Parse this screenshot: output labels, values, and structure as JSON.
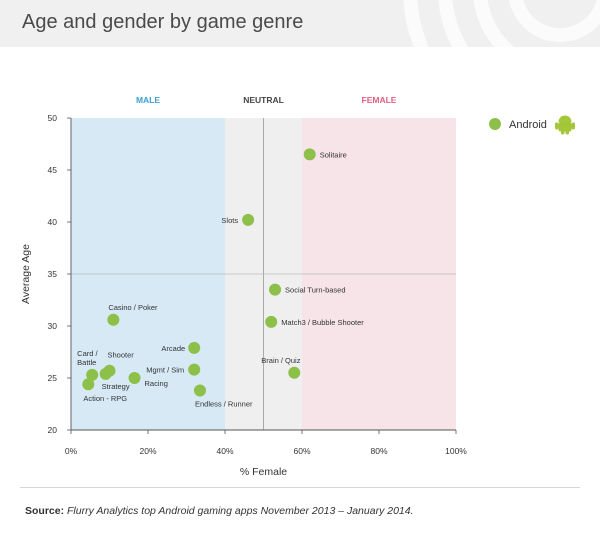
{
  "header": {
    "title": "Age and gender by game genre"
  },
  "colors": {
    "header_bg": "#f0f0f0",
    "male_zone": "#d6e9f5",
    "neutral_zone": "#efefef",
    "female_zone": "#f7e4e8",
    "male_label": "#3aa0d0",
    "neutral_label": "#444444",
    "female_label": "#e06080",
    "point": "#8cc049",
    "android": "#a4c639"
  },
  "zones": [
    {
      "label": "MALE",
      "from": 0,
      "to": 40,
      "color_key": "male"
    },
    {
      "label": "NEUTRAL",
      "from": 40,
      "to": 60,
      "color_key": "neutral"
    },
    {
      "label": "FEMALE",
      "from": 60,
      "to": 100,
      "color_key": "female"
    }
  ],
  "legend": {
    "label": "Android",
    "icon": "android-icon"
  },
  "chart_data": {
    "type": "scatter",
    "title": "Age and gender by game genre",
    "xlabel": "% Female",
    "ylabel": "Average Age",
    "xlim": [
      0,
      100
    ],
    "ylim": [
      20,
      50
    ],
    "xticks": [
      0,
      20,
      40,
      60,
      80,
      100
    ],
    "xtick_labels": [
      "0%",
      "20%",
      "40%",
      "60%",
      "80%",
      "100%"
    ],
    "yticks": [
      20,
      25,
      30,
      35,
      40,
      45,
      50
    ],
    "reference_lines": {
      "x": 50,
      "y": 35
    },
    "series": [
      {
        "name": "Android",
        "points": [
          {
            "label": "Solitaire",
            "x": 62,
            "y": 46.5
          },
          {
            "label": "Slots",
            "x": 46,
            "y": 40.2
          },
          {
            "label": "Social Turn-based",
            "x": 53,
            "y": 33.5
          },
          {
            "label": "Casino / Poker",
            "x": 11,
            "y": 30.6
          },
          {
            "label": "Match3 / Bubble Shooter",
            "x": 52,
            "y": 30.4
          },
          {
            "label": "Arcade",
            "x": 32,
            "y": 27.9
          },
          {
            "label": "Card / Battle",
            "x": 5.5,
            "y": 25.3
          },
          {
            "label": "Shooter",
            "x": 10,
            "y": 25.7
          },
          {
            "label": "Strategy",
            "x": 9,
            "y": 25.4
          },
          {
            "label": "Mgmt / Sim",
            "x": 32,
            "y": 25.8
          },
          {
            "label": "Racing",
            "x": 16.5,
            "y": 25.0
          },
          {
            "label": "Brain / Quiz",
            "x": 58,
            "y": 25.5
          },
          {
            "label": "Action - RPG",
            "x": 4.5,
            "y": 24.4
          },
          {
            "label": "Endless / Runner",
            "x": 33.5,
            "y": 23.8
          }
        ]
      }
    ]
  },
  "footer": {
    "source_label": "Source:",
    "source_text": "Flurry Analytics top Android gaming apps November 2013 – January 2014."
  }
}
